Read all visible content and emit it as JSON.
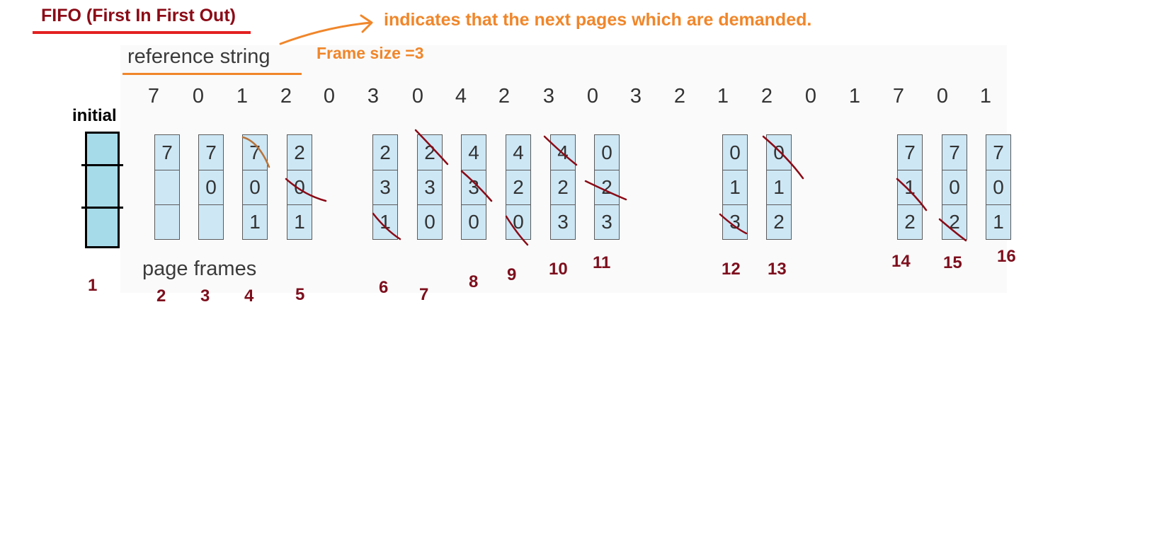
{
  "title": "FIFO (First In First Out)",
  "note": "indicates that the next pages which are demanded.",
  "frame_size_label": "Frame size =3",
  "reference_label": "reference string",
  "reference_string": [
    "7",
    "0",
    "1",
    "2",
    "0",
    "3",
    "0",
    "4",
    "2",
    "3",
    "0",
    "3",
    "2",
    "1",
    "2",
    "0",
    "1",
    "7",
    "0",
    "1"
  ],
  "initial_label": "initial",
  "page_frames_label": "page frames",
  "frames": [
    {
      "cells": [
        "7",
        "",
        ""
      ]
    },
    {
      "cells": [
        "7",
        "0",
        ""
      ]
    },
    {
      "cells": [
        "7",
        "0",
        "1"
      ]
    },
    {
      "cells": [
        "2",
        "0",
        "1"
      ]
    },
    {
      "cells": [
        "2",
        "3",
        "1"
      ]
    },
    {
      "cells": [
        "2",
        "3",
        "0"
      ]
    },
    {
      "cells": [
        "4",
        "3",
        "0"
      ]
    },
    {
      "cells": [
        "4",
        "2",
        "0"
      ]
    },
    {
      "cells": [
        "4",
        "2",
        "3"
      ]
    },
    {
      "cells": [
        "0",
        "2",
        "3"
      ]
    },
    {
      "cells": [
        "0",
        "1",
        "3"
      ]
    },
    {
      "cells": [
        "0",
        "1",
        "2"
      ]
    },
    {
      "cells": [
        "7",
        "1",
        "2"
      ]
    },
    {
      "cells": [
        "7",
        "0",
        "2"
      ]
    },
    {
      "cells": [
        "7",
        "0",
        "1"
      ]
    }
  ],
  "step_numbers": [
    "1",
    "2",
    "3",
    "4",
    "5",
    "6",
    "7",
    "8",
    "9",
    "10",
    "11",
    "12",
    "13",
    "14",
    "15",
    "16"
  ],
  "colors": {
    "title": "#8b0a16",
    "title_underline": "#e32121",
    "annotation_orange": "#f0862a",
    "strike_red": "#8b0a16",
    "strike_brown": "#b8743a",
    "frame_fill": "#cde7f5",
    "initial_fill": "#a6dbe9"
  }
}
